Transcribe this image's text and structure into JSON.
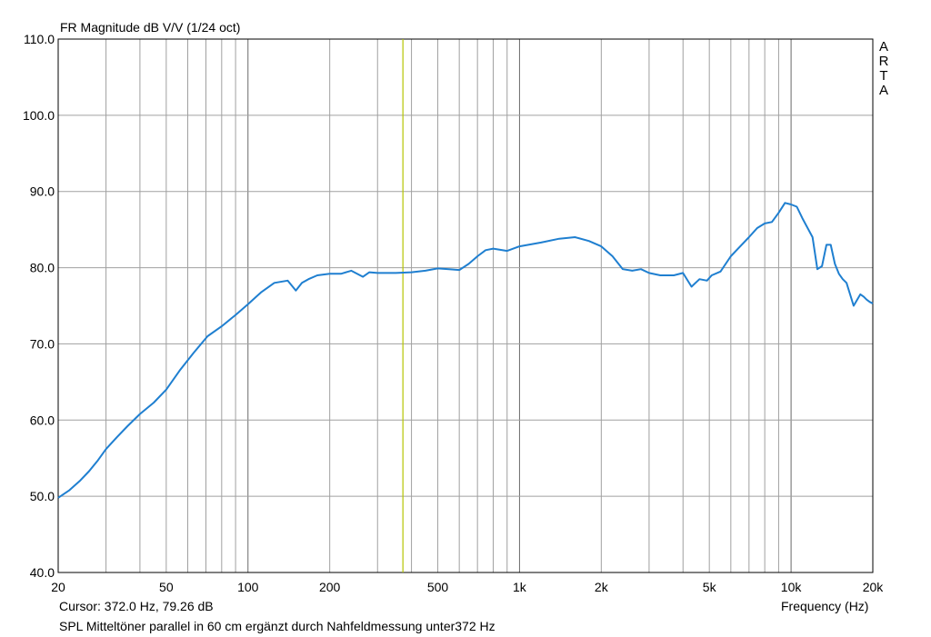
{
  "chart_data": {
    "type": "line",
    "title": "FR Magnitude dB V/V (1/24 oct)",
    "xlabel": "Frequency (Hz)",
    "ylabel": "",
    "xscale": "log",
    "xlim": [
      20,
      20000
    ],
    "ylim": [
      40,
      110
    ],
    "grid": true,
    "watermark": "ARTA",
    "xticks": [
      {
        "value": 20,
        "label": "20"
      },
      {
        "value": 50,
        "label": "50"
      },
      {
        "value": 100,
        "label": "100"
      },
      {
        "value": 200,
        "label": "200"
      },
      {
        "value": 500,
        "label": "500"
      },
      {
        "value": 1000,
        "label": "1k"
      },
      {
        "value": 2000,
        "label": "2k"
      },
      {
        "value": 5000,
        "label": "5k"
      },
      {
        "value": 10000,
        "label": "10k"
      },
      {
        "value": 20000,
        "label": "20k"
      }
    ],
    "yticks": [
      {
        "value": 40,
        "label": "40.0"
      },
      {
        "value": 50,
        "label": "50.0"
      },
      {
        "value": 60,
        "label": "60.0"
      },
      {
        "value": 70,
        "label": "70.0"
      },
      {
        "value": 80,
        "label": "80.0"
      },
      {
        "value": 90,
        "label": "90.0"
      },
      {
        "value": 100,
        "label": "100.0"
      },
      {
        "value": 110,
        "label": "110.0"
      }
    ],
    "cursor": {
      "x": 372.0,
      "y": 79.26,
      "label": "Cursor: 372.0 Hz, 79.26 dB"
    },
    "annotation": "SPL Mitteltöner parallel in 60 cm ergänzt durch Nahfeldmessung unter372 Hz",
    "colors": {
      "line": "#1f7fd0",
      "cursor": "#b5c400",
      "grid": "#a0a0a0"
    },
    "series": [
      {
        "name": "SPL Mitteltöner",
        "x": [
          20,
          22,
          24,
          26,
          28,
          30,
          33,
          36,
          40,
          45,
          50,
          56,
          63,
          71,
          80,
          90,
          100,
          112,
          125,
          140,
          150,
          158,
          167,
          180,
          200,
          220,
          240,
          265,
          280,
          300,
          350,
          400,
          450,
          500,
          550,
          600,
          650,
          700,
          750,
          800,
          900,
          1000,
          1200,
          1400,
          1600,
          1800,
          2000,
          2200,
          2400,
          2600,
          2800,
          3000,
          3300,
          3700,
          4000,
          4300,
          4600,
          4900,
          5100,
          5500,
          6000,
          6500,
          7000,
          7500,
          8000,
          8500,
          9000,
          9500,
          10000,
          10500,
          11000,
          12000,
          12500,
          13000,
          13500,
          14000,
          14500,
          15000,
          15500,
          16000,
          17000,
          18000,
          18500,
          19000,
          19500,
          20000
        ],
        "values": [
          49.8,
          50.8,
          52.0,
          53.3,
          54.7,
          56.2,
          57.8,
          59.2,
          60.8,
          62.3,
          64.0,
          66.5,
          68.8,
          71.0,
          72.3,
          73.8,
          75.2,
          76.8,
          78.0,
          78.3,
          77.0,
          78.0,
          78.5,
          79.0,
          79.2,
          79.2,
          79.6,
          78.8,
          79.4,
          79.3,
          79.3,
          79.4,
          79.6,
          79.9,
          79.8,
          79.7,
          80.5,
          81.5,
          82.3,
          82.5,
          82.2,
          82.8,
          83.3,
          83.8,
          84.0,
          83.5,
          82.8,
          81.5,
          79.8,
          79.6,
          79.8,
          79.3,
          79.0,
          79.0,
          79.3,
          77.5,
          78.5,
          78.3,
          79.0,
          79.5,
          81.5,
          82.8,
          84.0,
          85.2,
          85.8,
          86.0,
          87.2,
          88.5,
          88.3,
          88.0,
          86.5,
          84.0,
          79.8,
          80.2,
          83.0,
          83.0,
          80.5,
          79.2,
          78.5,
          78.0,
          75.0,
          76.5,
          76.2,
          75.8,
          75.5,
          75.3
        ]
      }
    ]
  }
}
